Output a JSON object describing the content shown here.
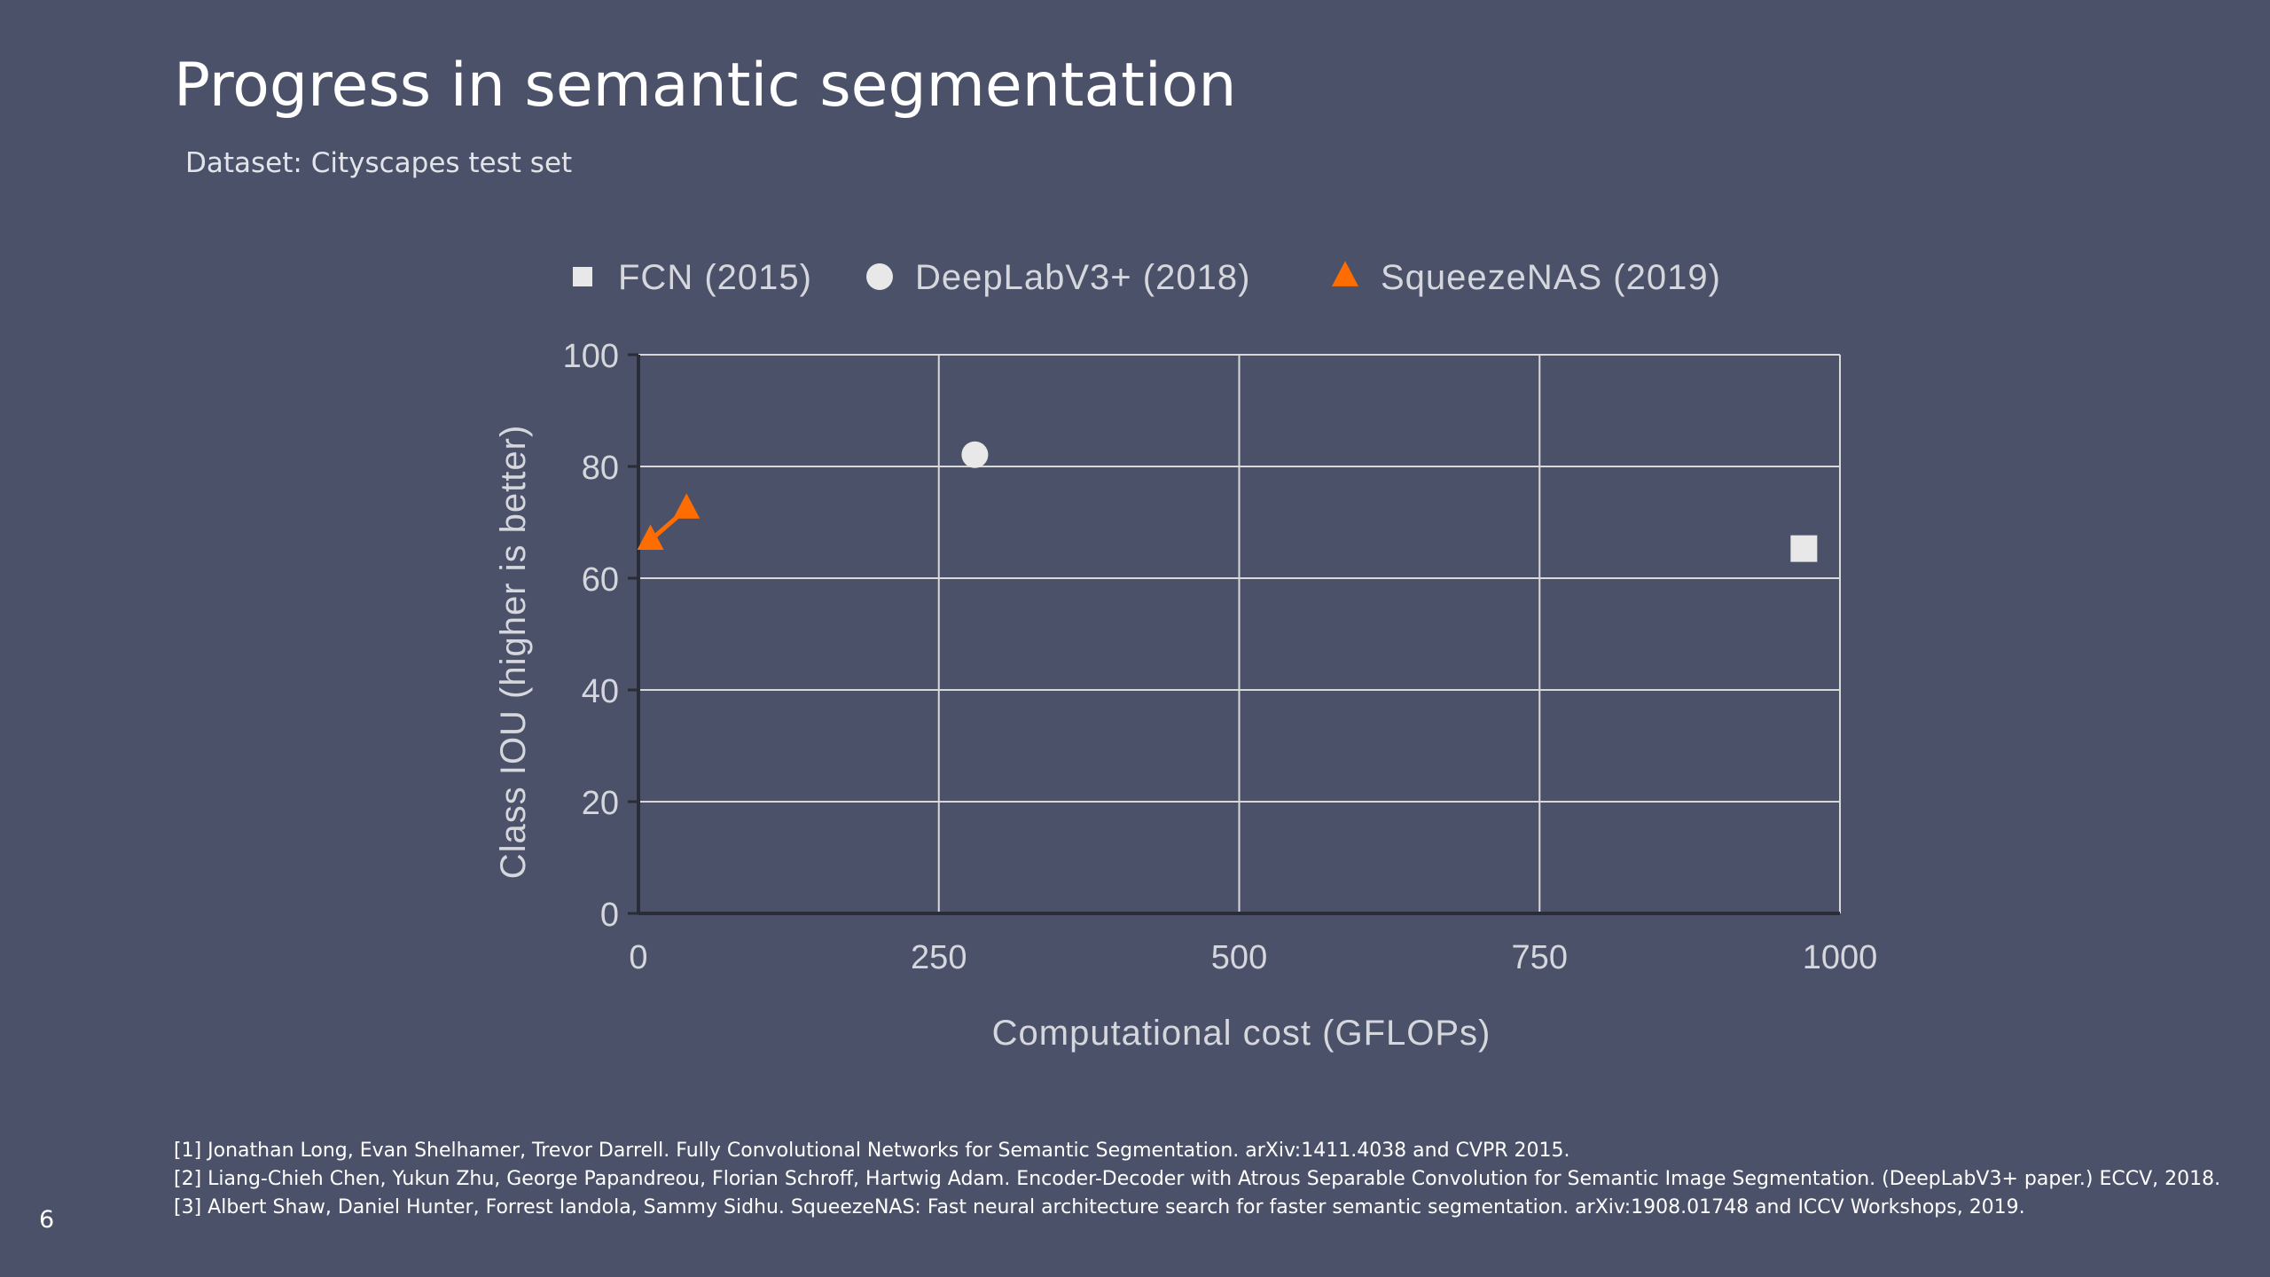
{
  "slide": {
    "title": "Progress in semantic segmentation",
    "subtitle": "Dataset: Cityscapes test set",
    "page_number": "6",
    "background_color": "#4b5169",
    "references": [
      "[1] Jonathan Long, Evan Shelhamer, Trevor Darrell. Fully Convolutional Networks for Semantic Segmentation. arXiv:1411.4038 and CVPR 2015.",
      "[2] Liang-Chieh Chen, Yukun Zhu, George Papandreou, Florian Schroff, Hartwig Adam. Encoder-Decoder with Atrous Separable Convolution for Semantic Image Segmentation. (DeepLabV3+ paper.) ECCV, 2018.",
      "[3] Albert Shaw, Daniel Hunter, Forrest Iandola, Sammy Sidhu. SqueezeNAS: Fast neural architecture search for faster semantic segmentation. arXiv:1908.01748 and ICCV Workshops, 2019."
    ]
  },
  "chart_data": {
    "type": "scatter",
    "title": "",
    "xlabel": "Computational cost (GFLOPs)",
    "ylabel": "Class IOU (higher is better)",
    "xlim": [
      0,
      1000
    ],
    "ylim": [
      0,
      100
    ],
    "xticks": [
      0,
      250,
      500,
      750,
      1000
    ],
    "xtick_labels": [
      "0",
      "250",
      "500",
      "750",
      "1000"
    ],
    "yticks": [
      0,
      20,
      40,
      60,
      80,
      100
    ],
    "ytick_labels": [
      "0",
      "20",
      "40",
      "60",
      "80",
      "100"
    ],
    "grid": true,
    "legend_position": "top",
    "series": [
      {
        "name": "FCN (2015)",
        "marker": "square",
        "color": "#e8e8e8",
        "points": [
          {
            "x": 970,
            "y": 65.3
          }
        ]
      },
      {
        "name": "DeepLabV3+ (2018)",
        "marker": "circle",
        "color": "#e8e8e8",
        "points": [
          {
            "x": 280,
            "y": 82.1
          }
        ]
      },
      {
        "name": "SqueezeNAS (2019)",
        "marker": "triangle",
        "color": "#ff6d00",
        "line": true,
        "points": [
          {
            "x": 10,
            "y": 66.8
          },
          {
            "x": 40,
            "y": 72.4
          }
        ]
      }
    ]
  }
}
